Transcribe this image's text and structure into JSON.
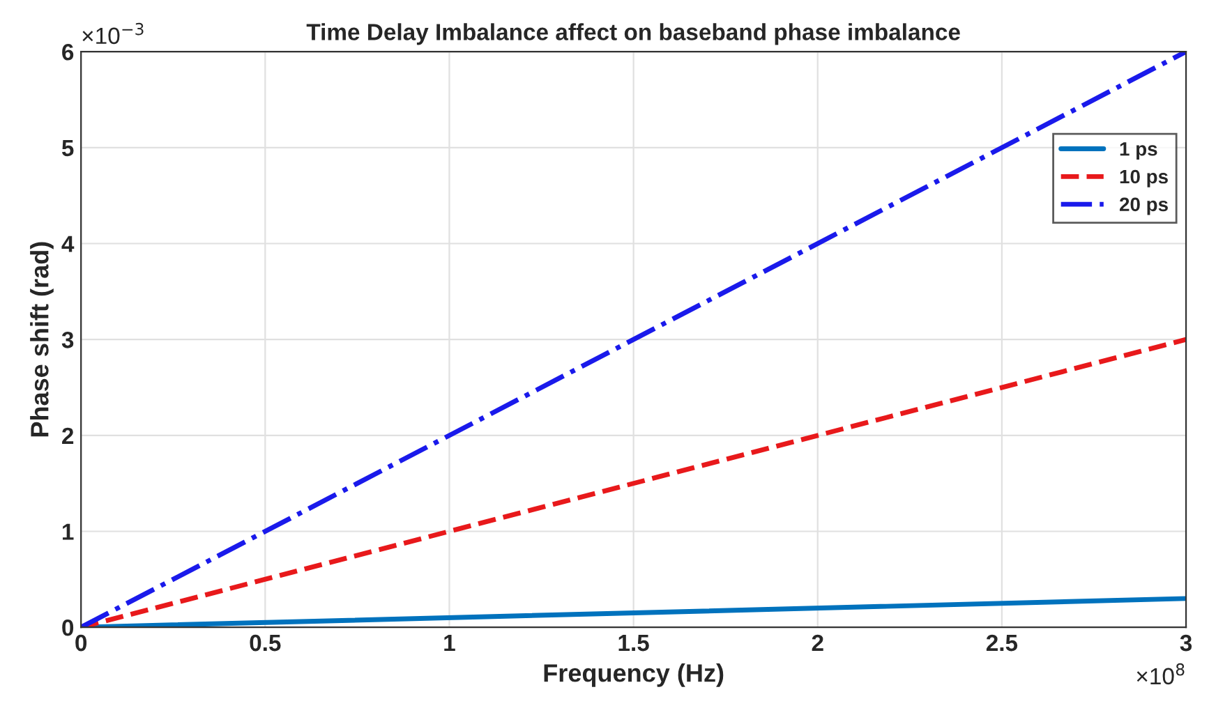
{
  "chart_data": {
    "type": "line",
    "title": "Time Delay Imbalance affect on baseband phase imbalance",
    "xlabel": "Frequency (Hz)",
    "ylabel": "Phase shift (rad)",
    "x": [
      0,
      3
    ],
    "series": [
      {
        "name": "1 ps",
        "color": "#0072bd",
        "values": [
          0,
          0.3
        ],
        "line_style": "solid"
      },
      {
        "name": "10 ps",
        "color": "#e8191b",
        "values": [
          0,
          3
        ],
        "line_style": "dashed"
      },
      {
        "name": "20 ps",
        "color": "#1a1aeb",
        "values": [
          0,
          6
        ],
        "line_style": "dashdot"
      }
    ],
    "xlim": [
      0,
      3
    ],
    "ylim": [
      0,
      6
    ],
    "xticks": [
      0,
      0.5,
      1,
      1.5,
      2,
      2.5,
      3
    ],
    "yticks": [
      0,
      1,
      2,
      3,
      4,
      5,
      6
    ],
    "annotations": [
      "×10$^{−3}$",
      "×10$^{8}$"
    ],
    "grid": true,
    "legend": "right"
  }
}
